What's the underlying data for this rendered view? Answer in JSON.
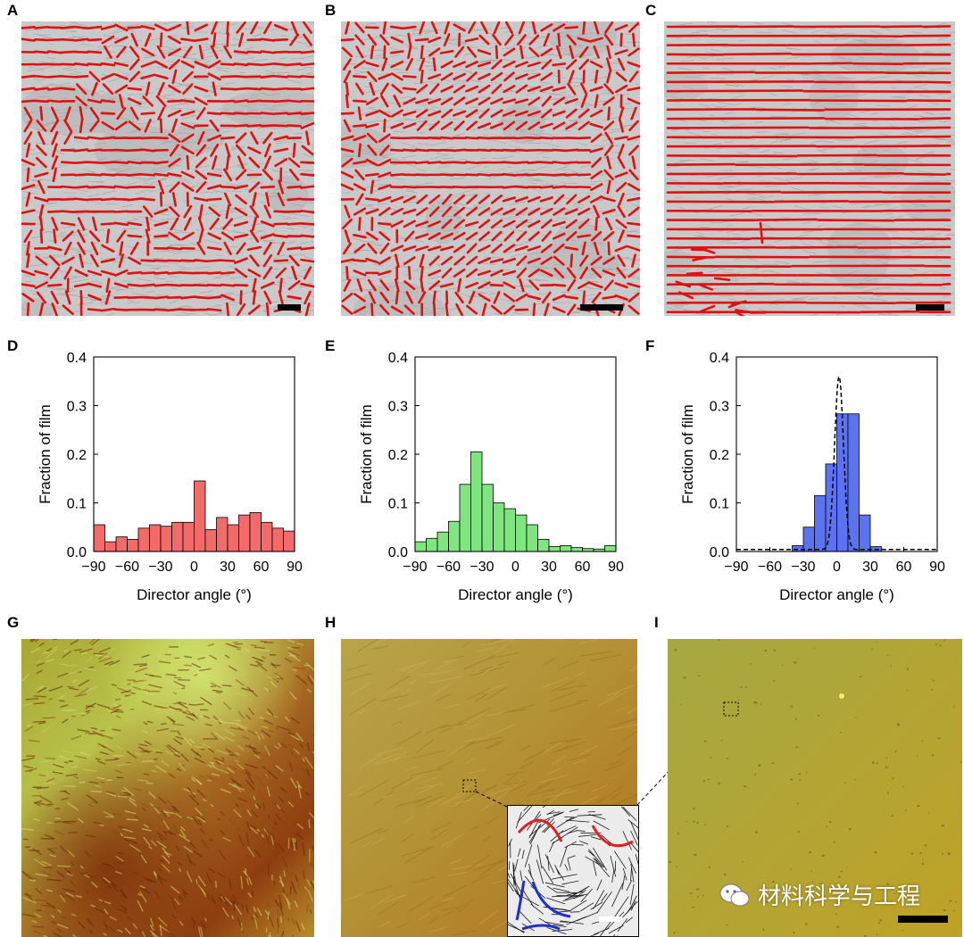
{
  "panels": {
    "A": "A",
    "B": "B",
    "C": "C",
    "D": "D",
    "E": "E",
    "F": "F",
    "G": "G",
    "H": "H",
    "I": "I"
  },
  "colors": {
    "director_red": "#e01010",
    "bar_red": "#f26a6a",
    "bar_green": "#7fe67f",
    "bar_blue": "#5b73f0",
    "inset_red": "#e02020",
    "inset_blue": "#2030d0"
  },
  "watermark": {
    "icon": "wechat-icon",
    "text": "材料科学与工程"
  },
  "chart_data": [
    {
      "panel": "D",
      "type": "bar",
      "x": [
        -85,
        -75,
        -65,
        -55,
        -45,
        -35,
        -25,
        -15,
        -5,
        5,
        15,
        25,
        35,
        45,
        55,
        65,
        75,
        85
      ],
      "values": [
        0.055,
        0.02,
        0.03,
        0.025,
        0.048,
        0.055,
        0.052,
        0.06,
        0.06,
        0.145,
        0.045,
        0.07,
        0.055,
        0.075,
        0.08,
        0.06,
        0.048,
        0.042
      ],
      "xlabel": "Director angle (°)",
      "ylabel": "Fraction of film",
      "xlim": [
        -90,
        90
      ],
      "ylim": [
        0,
        0.4
      ],
      "xticks": [
        -90,
        -60,
        -30,
        0,
        30,
        60,
        90
      ],
      "xtick_labels": [
        "−90",
        "−60",
        "−30",
        "0",
        "30",
        "60",
        "90"
      ],
      "yticks": [
        0,
        0.1,
        0.2,
        0.3,
        0.4
      ],
      "ytick_labels": [
        "0.0",
        "0.1",
        "0.2",
        "0.3",
        "0.4"
      ],
      "bar_color": "#f26a6a"
    },
    {
      "panel": "E",
      "type": "bar",
      "x": [
        -85,
        -75,
        -65,
        -55,
        -45,
        -35,
        -25,
        -15,
        -5,
        5,
        15,
        25,
        35,
        45,
        55,
        65,
        75,
        85
      ],
      "values": [
        0.02,
        0.027,
        0.04,
        0.062,
        0.138,
        0.205,
        0.138,
        0.1,
        0.088,
        0.075,
        0.055,
        0.025,
        0.01,
        0.012,
        0.008,
        0.006,
        0.005,
        0.012
      ],
      "xlabel": "Director angle (°)",
      "ylabel": "Fraction of film",
      "xlim": [
        -90,
        90
      ],
      "ylim": [
        0,
        0.4
      ],
      "xticks": [
        -90,
        -60,
        -30,
        0,
        30,
        60,
        90
      ],
      "xtick_labels": [
        "−90",
        "−60",
        "−30",
        "0",
        "30",
        "60",
        "90"
      ],
      "yticks": [
        0,
        0.1,
        0.2,
        0.3,
        0.4
      ],
      "ytick_labels": [
        "0.0",
        "0.1",
        "0.2",
        "0.3",
        "0.4"
      ],
      "bar_color": "#7fe67f"
    },
    {
      "panel": "F",
      "type": "bar",
      "x": [
        -85,
        -75,
        -65,
        -55,
        -45,
        -35,
        -25,
        -15,
        -5,
        5,
        15,
        25,
        35,
        45,
        55,
        65,
        75,
        85
      ],
      "values": [
        0,
        0,
        0,
        0,
        0,
        0.012,
        0.05,
        0.115,
        0.18,
        0.283,
        0.283,
        0.075,
        0.01,
        0,
        0,
        0,
        0,
        0
      ],
      "fit_curve": {
        "type": "gaussian",
        "mean": 2,
        "sd": 4,
        "peak": 0.36,
        "baseline": 0.004,
        "style": "dashed"
      },
      "xlabel": "Director angle (°)",
      "ylabel": "Fraction of film",
      "xlim": [
        -90,
        90
      ],
      "ylim": [
        0,
        0.4
      ],
      "xticks": [
        -90,
        -60,
        -30,
        0,
        30,
        60,
        90
      ],
      "xtick_labels": [
        "−90",
        "−60",
        "−30",
        "0",
        "30",
        "60",
        "90"
      ],
      "yticks": [
        0,
        0.1,
        0.2,
        0.3,
        0.4
      ],
      "ytick_labels": [
        "0.0",
        "0.1",
        "0.2",
        "0.3",
        "0.4"
      ],
      "bar_color": "#5b73f0"
    }
  ]
}
